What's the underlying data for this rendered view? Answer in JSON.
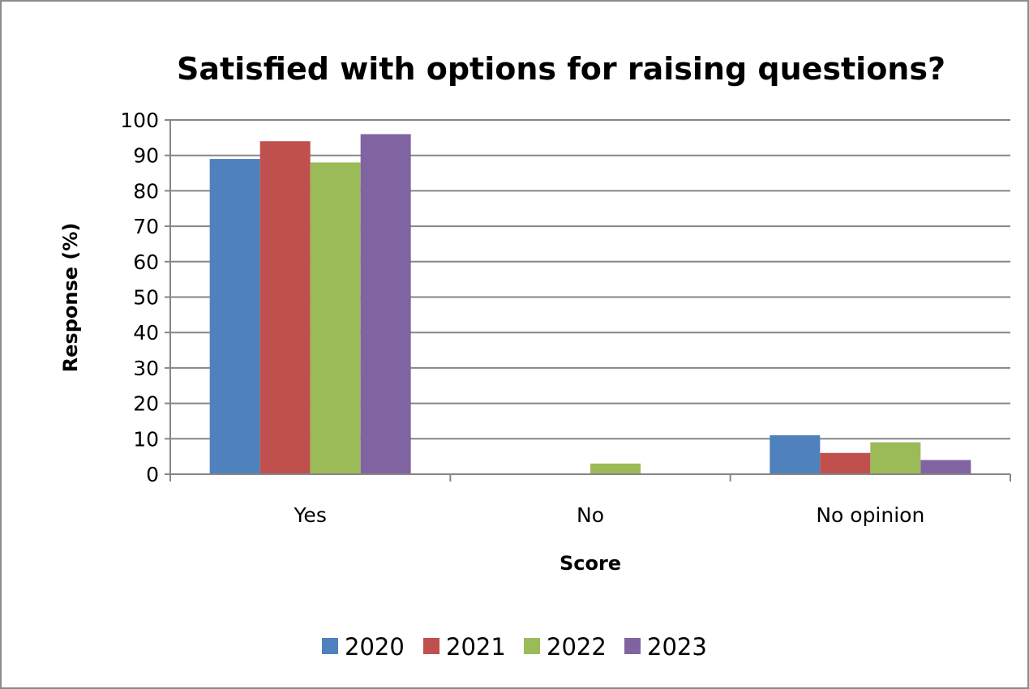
{
  "chart_data": {
    "type": "bar",
    "title": "Satisfied with options for raising questions?",
    "xlabel": "Score",
    "ylabel": "Response (%)",
    "categories": [
      "Yes",
      "No",
      "No opinion"
    ],
    "ylim": [
      0,
      100
    ],
    "yticks": [
      "0",
      "10",
      "20",
      "30",
      "40",
      "50",
      "60",
      "70",
      "80",
      "90",
      "100"
    ],
    "grid": true,
    "legend_position": "bottom",
    "series": [
      {
        "name": "2020",
        "color": "#4f81bd",
        "values": [
          89,
          0,
          11
        ]
      },
      {
        "name": "2021",
        "color": "#c0504d",
        "values": [
          94,
          0,
          6
        ]
      },
      {
        "name": "2022",
        "color": "#9bbb59",
        "values": [
          88,
          3,
          9
        ]
      },
      {
        "name": "2023",
        "color": "#8064a2",
        "values": [
          96,
          0,
          4
        ]
      }
    ]
  }
}
